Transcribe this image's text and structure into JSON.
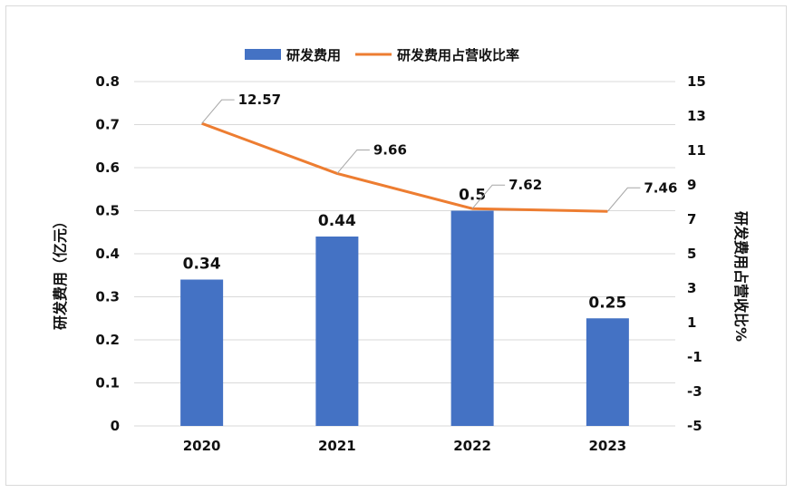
{
  "chart_data": {
    "type": "bar",
    "categories": [
      "2020",
      "2021",
      "2022",
      "2023"
    ],
    "series": [
      {
        "name": "研发费用",
        "type": "bar",
        "axis": "left",
        "values": [
          0.34,
          0.44,
          0.5,
          0.25
        ],
        "labels": [
          "0.34",
          "0.44",
          "0.5",
          "0.25"
        ],
        "color": "#4472c4"
      },
      {
        "name": "研发费用占营收比率",
        "type": "line",
        "axis": "right",
        "values": [
          12.57,
          9.66,
          7.62,
          7.46
        ],
        "labels": [
          "12.57",
          "9.66",
          "7.62",
          "7.46"
        ],
        "color": "#ed7d31"
      }
    ],
    "ylabel": "研发费用（亿元）",
    "y2label": "研发费用占营收比%",
    "ylim": [
      0,
      0.8
    ],
    "y2lim": [
      -5,
      15
    ],
    "yticks": [
      "0",
      "0.1",
      "0.2",
      "0.3",
      "0.4",
      "0.5",
      "0.6",
      "0.7",
      "0.8"
    ],
    "y2ticks": [
      "-5",
      "-3",
      "-1",
      "1",
      "3",
      "5",
      "7",
      "9",
      "11",
      "13",
      "15"
    ],
    "grid": true,
    "legend_position": "top"
  }
}
